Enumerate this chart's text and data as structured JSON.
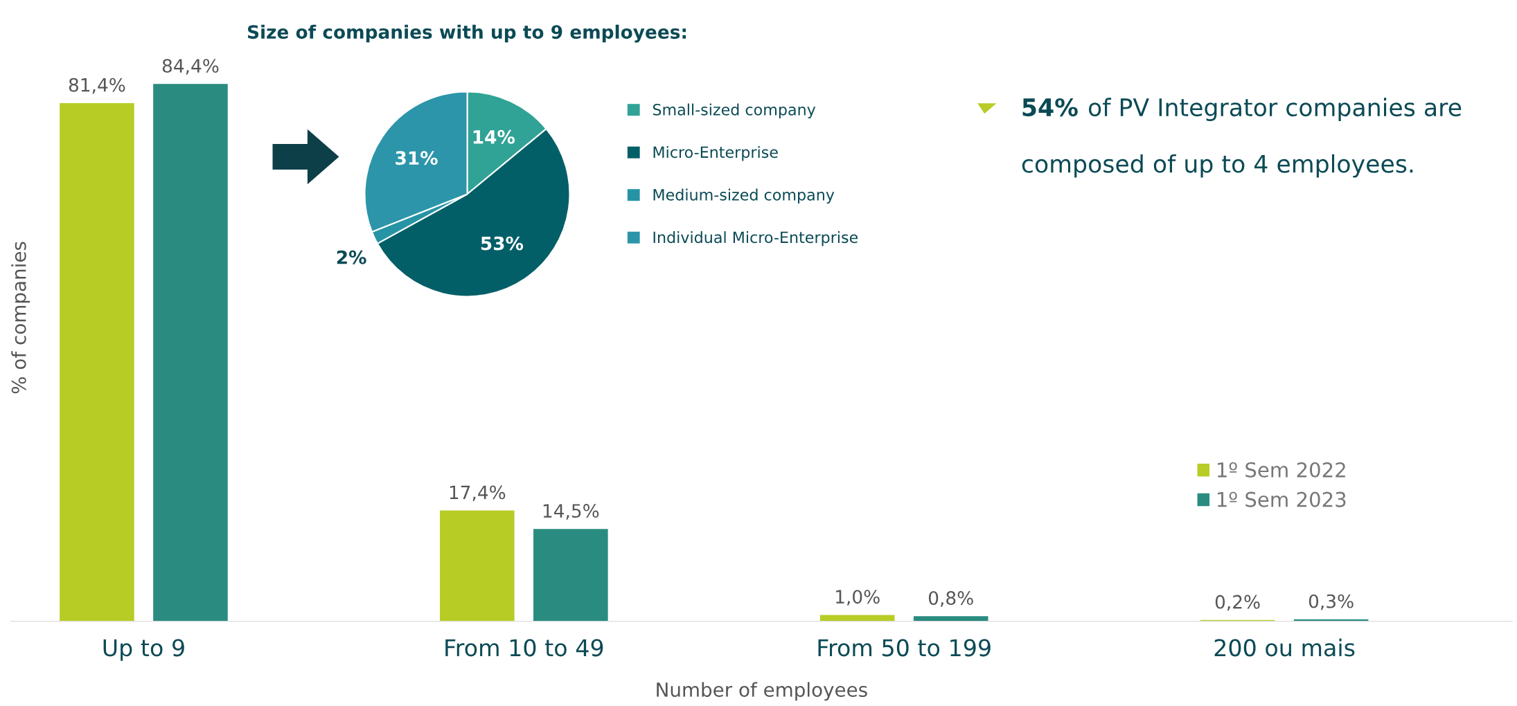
{
  "chart_data": [
    {
      "type": "bar",
      "xlabel": "Number of employees",
      "ylabel": "% of companies",
      "categories": [
        "Up to 9",
        "From 10 to 49",
        "From 50 to 199",
        "200 ou mais"
      ],
      "legend": "right",
      "grid": false,
      "series": [
        {
          "name": "1º Sem 2022",
          "color": "#b8cc26",
          "values": [
            81.4,
            17.4,
            1.0,
            0.2
          ],
          "value_labels": [
            "81,4%",
            "17,4%",
            "1,0%",
            "0,2%"
          ]
        },
        {
          "name": "1º Sem 2023",
          "color": "#2a8c80",
          "values": [
            84.4,
            14.5,
            0.8,
            0.3
          ],
          "value_labels": [
            "84,4%",
            "14,5%",
            "0,8%",
            "0,3%"
          ]
        }
      ]
    },
    {
      "type": "pie",
      "title": "Size of companies with up to 9 employees:",
      "categories": [
        "Small-sized company",
        "Micro-Enterprise",
        "Medium-sized company",
        "Individual Micro-Enterprise"
      ],
      "values": [
        14,
        53,
        2,
        31
      ],
      "value_labels": [
        "14%",
        "53%",
        "2%",
        "31%"
      ],
      "colors": [
        "#30a396",
        "#035f67",
        "#2694a5",
        "#2c95a9"
      ],
      "legend": "right"
    },
    {
      "type": "other",
      "annotations": [
        "54%",
        "of PV Integrator companies are",
        "composed of up to 4 employees."
      ]
    }
  ]
}
